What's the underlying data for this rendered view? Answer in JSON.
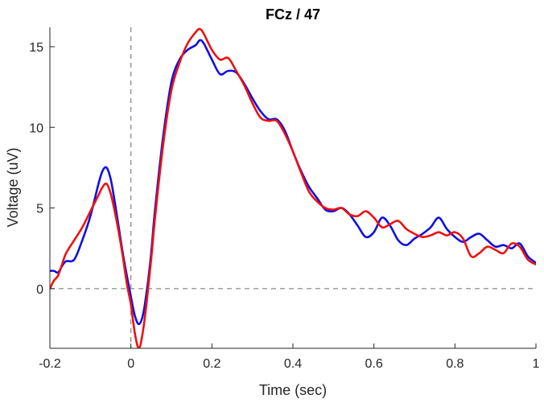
{
  "chart_data": {
    "type": "line",
    "title": "FCz / 47",
    "xlabel": "Time (sec)",
    "ylabel": "Voltage (uV)",
    "xlim": [
      -0.2,
      1.0
    ],
    "ylim": [
      -3.7,
      16.2
    ],
    "xticks": [
      -0.2,
      0,
      0.2,
      0.4,
      0.6,
      0.8,
      1
    ],
    "xtick_labels": [
      "-0.2",
      "0",
      "0.2",
      "0.4",
      "0.6",
      "0.8",
      "1"
    ],
    "yticks": [
      0,
      5,
      10,
      15
    ],
    "ytick_labels": [
      "0",
      "5",
      "10",
      "15"
    ],
    "grid": false,
    "reference_lines": [
      {
        "axis": "y",
        "value": 0,
        "style": "dashed",
        "color": "#808080"
      },
      {
        "axis": "x",
        "value": 0,
        "style": "dashed",
        "color": "#808080"
      }
    ],
    "series": [
      {
        "color": "#1010e0",
        "x": [
          -0.2,
          -0.19,
          -0.18,
          -0.17,
          -0.16,
          -0.14,
          -0.12,
          -0.1,
          -0.08,
          -0.07,
          -0.06,
          -0.05,
          -0.04,
          -0.03,
          -0.02,
          -0.01,
          0.0,
          0.01,
          0.02,
          0.03,
          0.04,
          0.05,
          0.06,
          0.08,
          0.1,
          0.12,
          0.14,
          0.16,
          0.17,
          0.18,
          0.2,
          0.22,
          0.24,
          0.26,
          0.28,
          0.3,
          0.32,
          0.34,
          0.36,
          0.38,
          0.4,
          0.42,
          0.44,
          0.46,
          0.48,
          0.5,
          0.52,
          0.54,
          0.56,
          0.58,
          0.6,
          0.62,
          0.64,
          0.66,
          0.68,
          0.7,
          0.72,
          0.74,
          0.76,
          0.78,
          0.8,
          0.82,
          0.84,
          0.86,
          0.88,
          0.9,
          0.92,
          0.94,
          0.96,
          0.98,
          1.0
        ],
        "y": [
          1.1,
          1.1,
          1.0,
          1.4,
          1.7,
          1.8,
          3.0,
          4.5,
          6.5,
          7.3,
          7.5,
          6.8,
          5.4,
          3.8,
          2.2,
          0.8,
          -0.5,
          -1.7,
          -2.2,
          -1.6,
          0.0,
          2.2,
          5.0,
          9.5,
          12.8,
          14.2,
          14.8,
          15.1,
          15.4,
          15.2,
          14.2,
          13.3,
          13.5,
          13.4,
          12.7,
          11.8,
          11.0,
          10.5,
          10.5,
          9.8,
          8.5,
          7.3,
          6.3,
          5.6,
          4.9,
          4.8,
          5.0,
          4.6,
          3.9,
          3.2,
          3.5,
          4.4,
          3.9,
          3.0,
          2.7,
          3.1,
          3.4,
          3.8,
          4.4,
          3.7,
          3.2,
          2.9,
          3.2,
          3.4,
          3.0,
          2.6,
          2.7,
          2.5,
          2.8,
          2.0,
          1.6
        ]
      },
      {
        "color": "#ee1111",
        "x": [
          -0.2,
          -0.19,
          -0.18,
          -0.17,
          -0.16,
          -0.14,
          -0.12,
          -0.1,
          -0.08,
          -0.07,
          -0.06,
          -0.05,
          -0.04,
          -0.03,
          -0.02,
          -0.01,
          0.0,
          0.01,
          0.02,
          0.03,
          0.04,
          0.05,
          0.06,
          0.08,
          0.1,
          0.12,
          0.14,
          0.16,
          0.17,
          0.18,
          0.2,
          0.22,
          0.24,
          0.26,
          0.28,
          0.3,
          0.32,
          0.34,
          0.36,
          0.38,
          0.4,
          0.42,
          0.44,
          0.46,
          0.48,
          0.5,
          0.52,
          0.54,
          0.56,
          0.58,
          0.6,
          0.62,
          0.64,
          0.66,
          0.68,
          0.7,
          0.72,
          0.74,
          0.76,
          0.78,
          0.8,
          0.82,
          0.84,
          0.86,
          0.88,
          0.9,
          0.92,
          0.94,
          0.96,
          0.98,
          1.0
        ],
        "y": [
          0.0,
          0.5,
          0.8,
          1.5,
          2.2,
          3.0,
          3.8,
          4.8,
          5.8,
          6.3,
          6.5,
          5.9,
          4.8,
          3.5,
          2.0,
          0.3,
          -1.0,
          -2.8,
          -3.7,
          -2.6,
          -0.6,
          1.8,
          4.5,
          9.0,
          12.3,
          14.0,
          15.2,
          15.9,
          16.1,
          15.8,
          14.8,
          14.2,
          14.3,
          13.5,
          12.6,
          11.5,
          10.6,
          10.4,
          10.4,
          9.6,
          8.5,
          7.2,
          6.0,
          5.4,
          5.0,
          4.9,
          5.0,
          4.6,
          4.5,
          4.8,
          4.4,
          3.8,
          4.0,
          4.2,
          3.7,
          3.4,
          3.2,
          3.3,
          3.5,
          3.3,
          3.5,
          3.1,
          2.0,
          2.2,
          2.6,
          2.4,
          2.2,
          2.8,
          2.6,
          1.8,
          1.5
        ]
      }
    ]
  }
}
